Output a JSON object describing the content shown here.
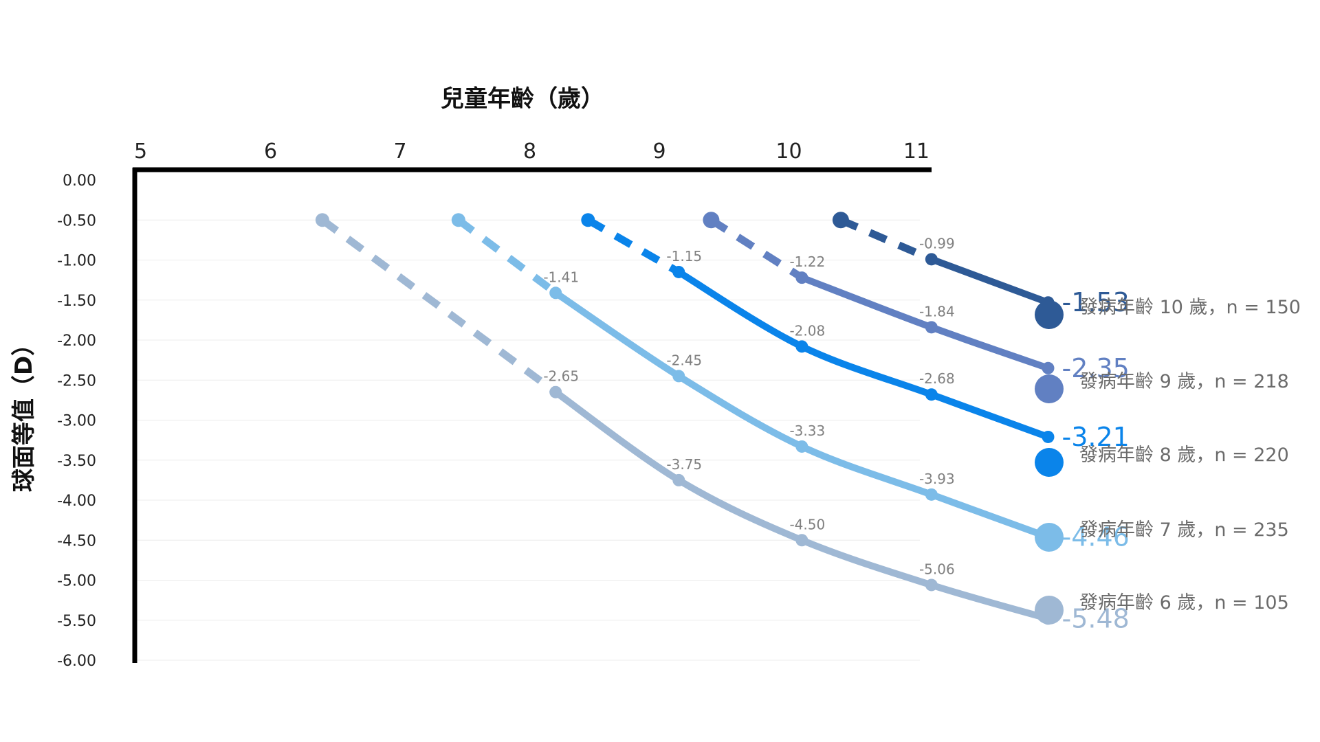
{
  "chart_data": {
    "type": "line",
    "xlabel": "兒童年齡（歲）",
    "ylabel": "球面等值（D）",
    "xlim": [
      5,
      11
    ],
    "ylim": [
      -6.0,
      0.0
    ],
    "xticks": [
      "5",
      "6",
      "7",
      "8",
      "9",
      "10",
      "11"
    ],
    "yticks": [
      "0.00",
      "-0.50",
      "-1.00",
      "-1.50",
      "-2.00",
      "-2.50",
      "-3.00",
      "-3.50",
      "-4.00",
      "-4.50",
      "-5.00",
      "-5.50",
      "-6.00"
    ],
    "grid": true,
    "legend_position": "right",
    "series": [
      {
        "name": "發病年齡 10 歲，n = 150",
        "color": "#2e5a96",
        "onset": {
          "x": 10.4,
          "y": -0.5
        },
        "points": [
          {
            "x": 11.1,
            "y": -0.99,
            "label": "-0.99"
          },
          {
            "x": 12,
            "y": -1.53,
            "label": "-1.53"
          }
        ]
      },
      {
        "name": "發病年齡 9 歲，n = 218",
        "color": "#6180c2",
        "onset": {
          "x": 9.4,
          "y": -0.5
        },
        "points": [
          {
            "x": 10.1,
            "y": -1.22,
            "label": "-1.22"
          },
          {
            "x": 11.1,
            "y": -1.84,
            "label": "-1.84"
          },
          {
            "x": 12,
            "y": -2.35,
            "label": "-2.35"
          }
        ]
      },
      {
        "name": "發病年齡 8 歲，n = 220",
        "color": "#0a84ea",
        "onset": {
          "x": 8.45,
          "y": -0.5
        },
        "points": [
          {
            "x": 9.15,
            "y": -1.15,
            "label": "-1.15"
          },
          {
            "x": 10.1,
            "y": -2.08,
            "label": "-2.08"
          },
          {
            "x": 11.1,
            "y": -2.68,
            "label": "-2.68"
          },
          {
            "x": 12,
            "y": -3.21,
            "label": "-3.21"
          }
        ]
      },
      {
        "name": "發病年齡 7 歲，n = 235",
        "color": "#7cbce8",
        "onset": {
          "x": 7.45,
          "y": -0.5
        },
        "points": [
          {
            "x": 8.2,
            "y": -1.41,
            "label": "-1.41"
          },
          {
            "x": 9.15,
            "y": -2.45,
            "label": "-2.45"
          },
          {
            "x": 10.1,
            "y": -3.33,
            "label": "-3.33"
          },
          {
            "x": 11.1,
            "y": -3.93,
            "label": "-3.93"
          },
          {
            "x": 12,
            "y": -4.46,
            "label": "-4.46"
          }
        ]
      },
      {
        "name": "發病年齡 6 歲，n = 105",
        "color": "#9fb8d4",
        "onset": {
          "x": 6.4,
          "y": -0.5
        },
        "points": [
          {
            "x": 8.2,
            "y": -2.65,
            "label": "-2.65"
          },
          {
            "x": 9.15,
            "y": -3.75,
            "label": "-3.75"
          },
          {
            "x": 10.1,
            "y": -4.5,
            "label": "-4.50"
          },
          {
            "x": 11.1,
            "y": -5.06,
            "label": "-5.06"
          },
          {
            "x": 12,
            "y": -5.48,
            "label": "-5.48"
          }
        ]
      }
    ]
  }
}
